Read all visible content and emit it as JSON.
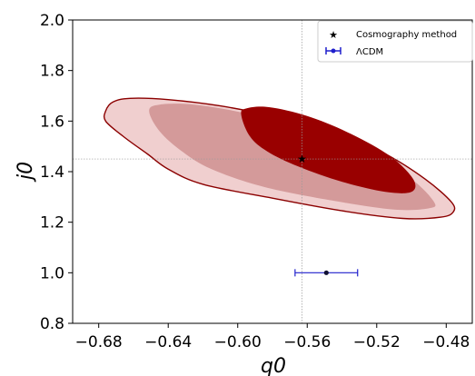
{
  "chart_data": {
    "type": "scatter",
    "xlabel": "q0",
    "ylabel": "j0",
    "xlim": [
      -0.695,
      -0.465
    ],
    "ylim": [
      0.8,
      2.0
    ],
    "x_ticks": [
      -0.68,
      -0.64,
      -0.6,
      -0.56,
      -0.52,
      -0.48
    ],
    "x_tick_labels": [
      "−0.68",
      "−0.64",
      "−0.60",
      "−0.56",
      "−0.52",
      "−0.48"
    ],
    "y_ticks": [
      0.8,
      1.0,
      1.2,
      1.4,
      1.6,
      1.8,
      2.0
    ],
    "y_tick_labels": [
      "0.8",
      "1.0",
      "1.2",
      "1.4",
      "1.6",
      "1.8",
      "2.0"
    ],
    "grid": false,
    "legend_position": "top-right",
    "reference_lines": {
      "x": -0.563,
      "y": 1.45
    },
    "series": [
      {
        "name": "Cosmography method",
        "marker": "star",
        "color": "#000000",
        "x": [
          -0.563
        ],
        "y": [
          1.45
        ]
      },
      {
        "name": "ΛCDM",
        "marker": "point-with-xerr",
        "color": "#1f1fcc",
        "x": [
          -0.549
        ],
        "y": [
          1.0
        ],
        "xerr": [
          0.018
        ]
      }
    ],
    "contours": [
      {
        "level": "outer",
        "fill": "#f0cfcf",
        "edge": "#8b0000",
        "points": [
          [
            -0.676,
            1.64
          ],
          [
            -0.672,
            1.675
          ],
          [
            -0.662,
            1.69
          ],
          [
            -0.64,
            1.685
          ],
          [
            -0.61,
            1.66
          ],
          [
            -0.58,
            1.62
          ],
          [
            -0.545,
            1.56
          ],
          [
            -0.515,
            1.47
          ],
          [
            -0.492,
            1.37
          ],
          [
            -0.477,
            1.28
          ],
          [
            -0.476,
            1.24
          ],
          [
            -0.483,
            1.22
          ],
          [
            -0.505,
            1.215
          ],
          [
            -0.54,
            1.245
          ],
          [
            -0.58,
            1.295
          ],
          [
            -0.62,
            1.35
          ],
          [
            -0.64,
            1.41
          ],
          [
            -0.652,
            1.47
          ],
          [
            -0.666,
            1.54
          ],
          [
            -0.676,
            1.6
          ]
        ]
      },
      {
        "level": "middle",
        "fill": "#d49a9a",
        "points": [
          [
            -0.651,
            1.64
          ],
          [
            -0.645,
            1.665
          ],
          [
            -0.625,
            1.665
          ],
          [
            -0.595,
            1.63
          ],
          [
            -0.56,
            1.565
          ],
          [
            -0.525,
            1.47
          ],
          [
            -0.5,
            1.37
          ],
          [
            -0.487,
            1.28
          ],
          [
            -0.49,
            1.255
          ],
          [
            -0.51,
            1.25
          ],
          [
            -0.545,
            1.285
          ],
          [
            -0.585,
            1.34
          ],
          [
            -0.615,
            1.41
          ],
          [
            -0.632,
            1.48
          ],
          [
            -0.645,
            1.56
          ]
        ]
      },
      {
        "level": "inner",
        "fill": "#990000",
        "points": [
          [
            -0.598,
            1.625
          ],
          [
            -0.595,
            1.65
          ],
          [
            -0.582,
            1.655
          ],
          [
            -0.56,
            1.62
          ],
          [
            -0.535,
            1.55
          ],
          [
            -0.512,
            1.46
          ],
          [
            -0.499,
            1.37
          ],
          [
            -0.5,
            1.32
          ],
          [
            -0.515,
            1.32
          ],
          [
            -0.54,
            1.36
          ],
          [
            -0.565,
            1.42
          ],
          [
            -0.583,
            1.48
          ],
          [
            -0.593,
            1.54
          ]
        ]
      }
    ]
  }
}
